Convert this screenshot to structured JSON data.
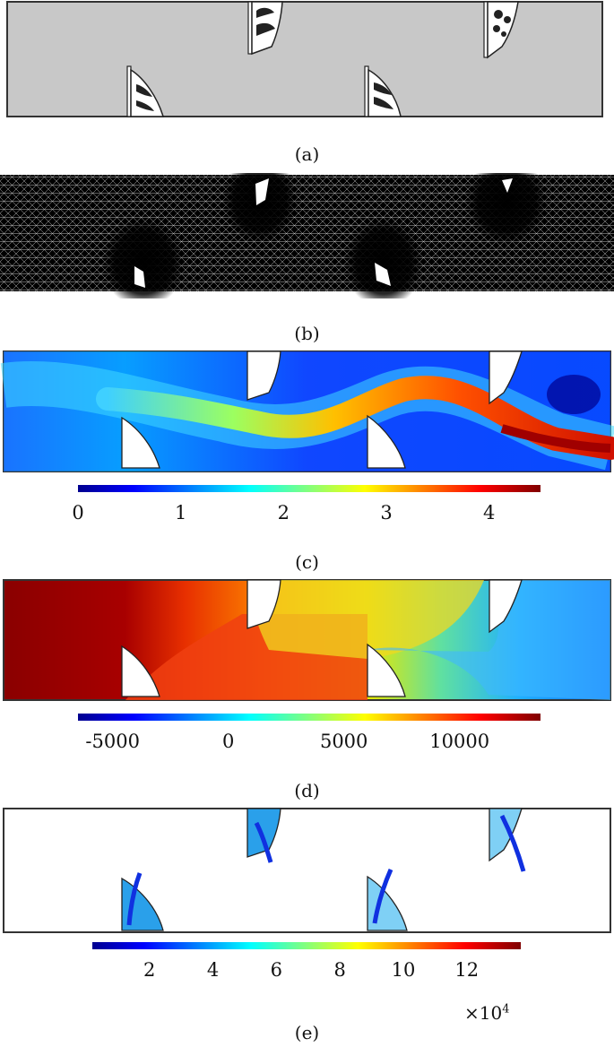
{
  "figure": {
    "panels": [
      {
        "caption": "(a)",
        "view": "geometry"
      },
      {
        "caption": "(b)",
        "view": "mesh"
      },
      {
        "caption": "(c)",
        "view": "velocity",
        "colorbar": {
          "min": 0,
          "max": 4.5,
          "ticks": [
            "0",
            "1",
            "2",
            "3",
            "4"
          ],
          "tick_values": [
            0,
            1,
            2,
            3,
            4
          ]
        }
      },
      {
        "caption": "(d)",
        "view": "pressure",
        "colorbar": {
          "min": -6500,
          "max": 13500,
          "ticks": [
            "-5000",
            "0",
            "5000",
            "10000"
          ],
          "tick_values": [
            -5000,
            0,
            5000,
            10000
          ]
        }
      },
      {
        "caption": "(e)",
        "view": "stress",
        "colorbar": {
          "min": 0.2,
          "max": 13.7,
          "ticks": [
            "2",
            "4",
            "6",
            "8",
            "10",
            "12"
          ],
          "tick_values": [
            2,
            4,
            6,
            8,
            10,
            12
          ],
          "multiplier": "×10",
          "multiplier_exp": "4"
        }
      }
    ]
  },
  "colors": {
    "domain_gray": "#c8c8c8",
    "mesh_black": "#000000",
    "jet_dark_blue": "#00008f",
    "jet_blue": "#0050ff",
    "jet_cyan": "#20d0ff",
    "jet_yellow": "#f5f500",
    "jet_red": "#ff2000",
    "jet_dark_red": "#800000",
    "stress_blue": "#1f8fe0"
  },
  "icons": {
    "structure": "topology-optimized-baffle"
  }
}
